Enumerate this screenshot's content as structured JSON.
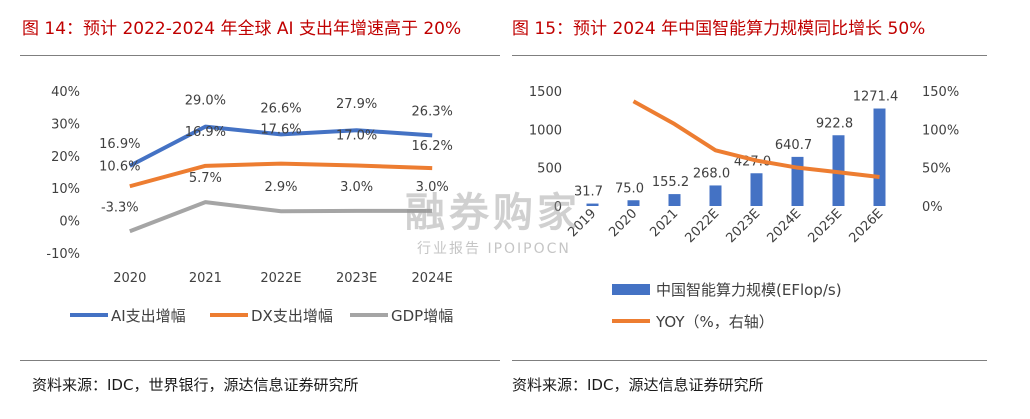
{
  "left_title": "图 14：预计 2022-2024 年全球 AI 支出年增速高于 20%",
  "right_title": "图 15：预计 2024 年中国智能算力规模同比增长 50%",
  "left_source": "资料来源：IDC，世界银行，源达信息证券研究所",
  "right_source": "资料来源：IDC，源达信息证券研究所",
  "watermark": {
    "main": "融券购家",
    "sub": "行业报告 IPOIPOCN"
  },
  "colors": {
    "title_red": "#c00000",
    "ai": "#4472c4",
    "dx": "#ed7d31",
    "gdp": "#a5a5a5",
    "bar": "#4472c4",
    "yoy": "#ed7d31"
  },
  "chart_data": [
    {
      "type": "line",
      "title": "",
      "categories": [
        "2020",
        "2021",
        "2022E",
        "2023E",
        "2024E"
      ],
      "y_ticks": [
        "40%",
        "30%",
        "20%",
        "10%",
        "0%",
        "-10%"
      ],
      "ylim": [
        -10,
        40
      ],
      "series": [
        {
          "name": "AI支出增幅",
          "values": [
            16.9,
            29.0,
            26.6,
            27.9,
            26.3
          ],
          "labels": [
            "16.9%",
            "29.0%",
            "26.6%",
            "27.9%",
            "26.3%"
          ]
        },
        {
          "name": "DX支出增幅",
          "values": [
            10.6,
            16.9,
            17.6,
            17.0,
            16.2
          ],
          "labels": [
            "10.6%",
            "16.9%",
            "17.6%",
            "17.0%",
            "16.2%"
          ]
        },
        {
          "name": "GDP增幅",
          "values": [
            -3.3,
            5.7,
            2.9,
            3.0,
            3.0
          ],
          "labels": [
            "-3.3%",
            "5.7%",
            "2.9%",
            "3.0%",
            "3.0%"
          ]
        }
      ],
      "legend": "bottom"
    },
    {
      "type": "bar",
      "title": "",
      "categories": [
        "2019",
        "2020",
        "2021",
        "2022E",
        "2023E",
        "2024E",
        "2025E",
        "2026E"
      ],
      "y_ticks_left": [
        "1500",
        "1000",
        "500",
        "0"
      ],
      "y_ticks_right": [
        "150%",
        "100%",
        "50%",
        "0%"
      ],
      "ylim_left": [
        0,
        1500
      ],
      "ylim_right": [
        0,
        150
      ],
      "series": [
        {
          "name": "中国智能算力规模(EFlop/s)",
          "axis": "left",
          "values": [
            31.7,
            75.0,
            155.2,
            268.0,
            427.0,
            640.7,
            922.8,
            1271.4
          ],
          "labels": [
            "31.7",
            "75.0",
            "155.2",
            "268.0",
            "427.0",
            "640.7",
            "922.8",
            "1271.4"
          ]
        },
        {
          "name": "YOY（%，右轴）",
          "axis": "right",
          "type": "line",
          "values": [
            null,
            136.6,
            106.9,
            72.7,
            59.3,
            50.0,
            44.0,
            37.8
          ]
        }
      ],
      "legend": "bottom"
    }
  ]
}
